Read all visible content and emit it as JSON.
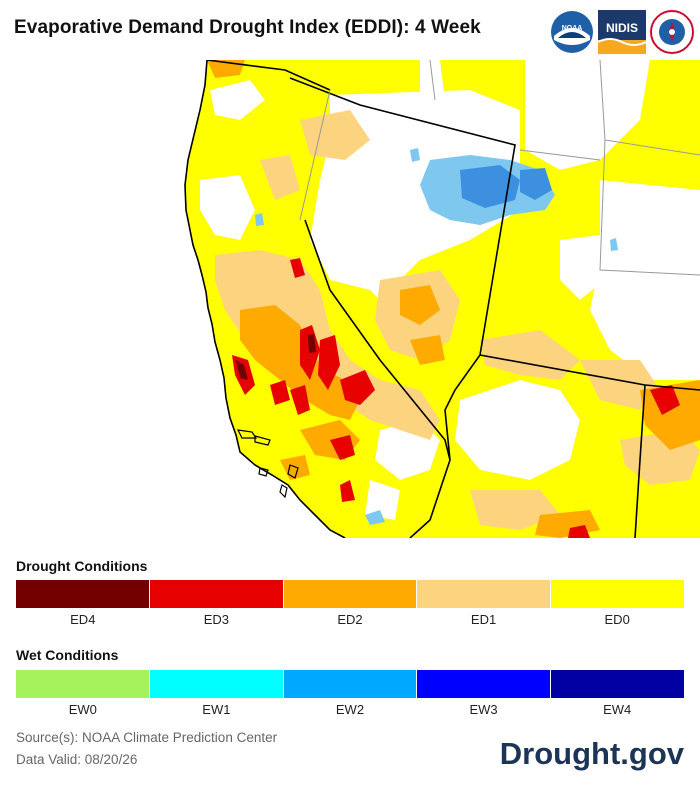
{
  "title": "Evaporative Demand Drought Index (EDDI): 4 Week",
  "logos": [
    {
      "name": "NOAA",
      "color": "#1f5fa8"
    },
    {
      "name": "NIDIS",
      "color": "#1b3a6b"
    },
    {
      "name": "National Weather Service",
      "color": "#c8102e"
    }
  ],
  "legend_drought": {
    "heading": "Drought Conditions",
    "items": [
      {
        "label": "ED4",
        "color": "#730000"
      },
      {
        "label": "ED3",
        "color": "#e60000"
      },
      {
        "label": "ED2",
        "color": "#ffaa00"
      },
      {
        "label": "ED1",
        "color": "#fcd37f"
      },
      {
        "label": "ED0",
        "color": "#ffff00"
      }
    ]
  },
  "legend_wet": {
    "heading": "Wet Conditions",
    "items": [
      {
        "label": "EW0",
        "color": "#a6f25c"
      },
      {
        "label": "EW1",
        "color": "#00ffff"
      },
      {
        "label": "EW2",
        "color": "#00a8ff"
      },
      {
        "label": "EW3",
        "color": "#0000ff"
      },
      {
        "label": "EW4",
        "color": "#0000a3"
      }
    ]
  },
  "source": "Source(s): NOAA Climate Prediction Center",
  "valid": "Data Valid: 08/20/26",
  "brand": "Drought.gov"
}
